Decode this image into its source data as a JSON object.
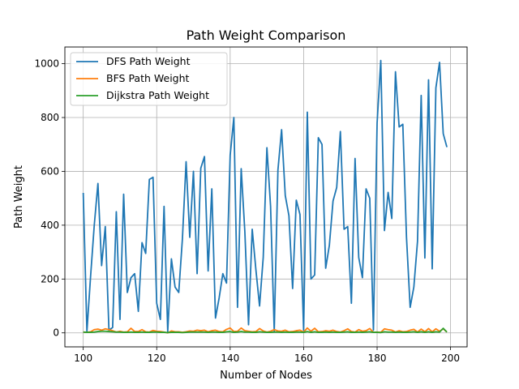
{
  "chart_data": {
    "type": "line",
    "title": "Path Weight Comparison",
    "xlabel": "Number of Nodes",
    "ylabel": "Path Weight",
    "xlim": [
      95,
      204.5
    ],
    "ylim": [
      -52,
      1062
    ],
    "xticks": [
      100,
      120,
      140,
      160,
      180,
      200
    ],
    "yticks": [
      0,
      200,
      400,
      600,
      800,
      1000
    ],
    "grid": true,
    "legend_position": "top-left",
    "x": [
      100,
      101,
      102,
      103,
      104,
      105,
      106,
      107,
      108,
      109,
      110,
      111,
      112,
      113,
      114,
      115,
      116,
      117,
      118,
      119,
      120,
      121,
      122,
      123,
      124,
      125,
      126,
      127,
      128,
      129,
      130,
      131,
      132,
      133,
      134,
      135,
      136,
      137,
      138,
      139,
      140,
      141,
      142,
      143,
      144,
      145,
      146,
      147,
      148,
      149,
      150,
      151,
      152,
      153,
      154,
      155,
      156,
      157,
      158,
      159,
      160,
      161,
      162,
      163,
      164,
      165,
      166,
      167,
      168,
      169,
      170,
      171,
      172,
      173,
      174,
      175,
      176,
      177,
      178,
      179,
      180,
      181,
      182,
      183,
      184,
      185,
      186,
      187,
      188,
      189,
      190,
      191,
      192,
      193,
      194,
      195,
      196,
      197,
      198,
      199
    ],
    "series": [
      {
        "name": "DFS Path Weight",
        "color": "#1f77b4",
        "values": [
          520,
          5,
          210,
          400,
          555,
          250,
          395,
          10,
          20,
          450,
          50,
          515,
          150,
          205,
          220,
          80,
          335,
          295,
          570,
          578,
          110,
          50,
          470,
          5,
          275,
          170,
          150,
          350,
          636,
          355,
          600,
          220,
          612,
          655,
          230,
          535,
          55,
          130,
          220,
          185,
          660,
          800,
          95,
          610,
          375,
          30,
          385,
          235,
          100,
          280,
          688,
          470,
          5,
          605,
          755,
          510,
          435,
          165,
          493,
          440,
          10,
          820,
          200,
          215,
          725,
          700,
          240,
          325,
          490,
          540,
          748,
          385,
          395,
          110,
          648,
          280,
          205,
          535,
          500,
          10,
          780,
          1012,
          380,
          522,
          425,
          970,
          765,
          775,
          355,
          95,
          170,
          340,
          882,
          278,
          940,
          238,
          910,
          1005,
          740,
          690
        ]
      },
      {
        "name": "BFS Path Weight",
        "color": "#ff7f0e",
        "values": [
          3,
          2,
          4,
          12,
          14,
          10,
          15,
          12,
          8,
          3,
          6,
          3,
          4,
          17,
          5,
          5,
          12,
          4,
          3,
          9,
          6,
          5,
          3,
          0,
          7,
          4,
          4,
          2,
          4,
          7,
          6,
          10,
          8,
          10,
          4,
          8,
          10,
          5,
          4,
          13,
          18,
          5,
          6,
          18,
          8,
          6,
          4,
          5,
          16,
          7,
          3,
          6,
          12,
          7,
          6,
          10,
          4,
          5,
          8,
          10,
          3,
          18,
          6,
          17,
          4,
          5,
          8,
          6,
          10,
          5,
          3,
          8,
          15,
          5,
          3,
          12,
          6,
          8,
          16,
          2,
          3,
          2,
          15,
          12,
          10,
          3,
          8,
          4,
          5,
          10,
          13,
          3,
          14,
          4,
          16,
          4,
          15,
          6,
          15,
          3
        ]
      },
      {
        "name": "Dijkstra Path Weight",
        "color": "#2ca02c",
        "values": [
          3,
          2,
          2,
          3,
          5,
          6,
          6,
          5,
          4,
          3,
          3,
          2,
          2,
          3,
          2,
          2,
          3,
          2,
          2,
          3,
          3,
          2,
          2,
          1,
          2,
          2,
          2,
          1,
          2,
          3,
          3,
          3,
          3,
          3,
          2,
          3,
          3,
          2,
          2,
          4,
          5,
          2,
          3,
          5,
          3,
          3,
          2,
          2,
          4,
          3,
          2,
          2,
          3,
          3,
          2,
          3,
          2,
          2,
          3,
          3,
          2,
          5,
          2,
          4,
          2,
          2,
          3,
          2,
          3,
          2,
          2,
          3,
          4,
          2,
          2,
          3,
          2,
          3,
          4,
          2,
          2,
          1,
          4,
          3,
          3,
          2,
          3,
          2,
          2,
          3,
          4,
          2,
          4,
          2,
          4,
          2,
          4,
          3,
          17,
          3
        ]
      }
    ]
  }
}
